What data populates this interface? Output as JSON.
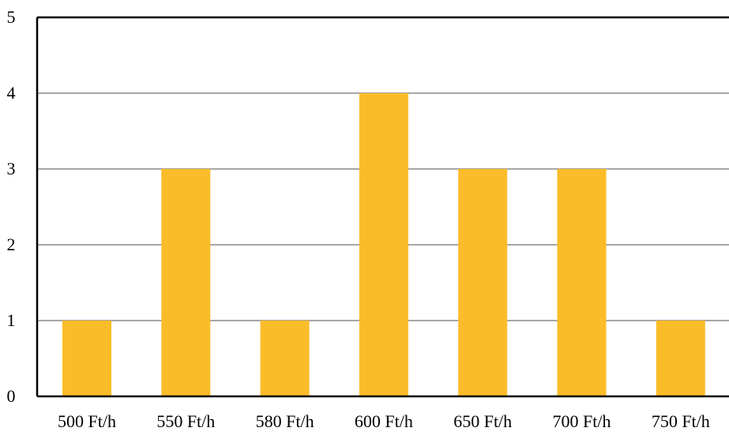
{
  "chart_data": {
    "type": "bar",
    "title": "",
    "xlabel": "",
    "ylabel": "",
    "categories": [
      "500 Ft/h",
      "550 Ft/h",
      "580 Ft/h",
      "600 Ft/h",
      "650 Ft/h",
      "700 Ft/h",
      "750 Ft/h"
    ],
    "values": [
      1,
      3,
      1,
      4,
      3,
      3,
      1
    ],
    "ylim": [
      0,
      5
    ],
    "yticks": [
      "0",
      "1",
      "2",
      "3",
      "4",
      "5"
    ],
    "grid": true,
    "legend": "none",
    "colors": {
      "bar": "#fbbc2a",
      "grid": "#a6a6a6",
      "axis": "#000000"
    }
  }
}
